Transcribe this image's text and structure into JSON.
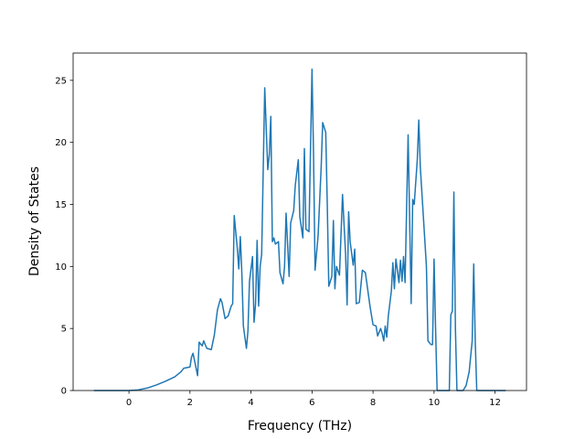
{
  "chart_data": {
    "type": "line",
    "xlabel": "Frequency (THz)",
    "ylabel": "Density of States",
    "x": [
      -1.15,
      0,
      0.3,
      0.6,
      0.9,
      1.2,
      1.5,
      1.7,
      1.8,
      2.0,
      2.05,
      2.1,
      2.2,
      2.25,
      2.3,
      2.4,
      2.45,
      2.55,
      2.7,
      2.8,
      2.9,
      3.0,
      3.05,
      3.15,
      3.25,
      3.35,
      3.4,
      3.45,
      3.55,
      3.6,
      3.65,
      3.7,
      3.75,
      3.85,
      3.9,
      3.95,
      4.05,
      4.1,
      4.15,
      4.2,
      4.25,
      4.3,
      4.35,
      4.45,
      4.55,
      4.6,
      4.65,
      4.7,
      4.75,
      4.8,
      4.9,
      4.95,
      5.05,
      5.1,
      5.15,
      5.25,
      5.3,
      5.4,
      5.45,
      5.55,
      5.6,
      5.7,
      5.75,
      5.8,
      5.9,
      6.0,
      6.05,
      6.1,
      6.2,
      6.3,
      6.35,
      6.45,
      6.5,
      6.55,
      6.65,
      6.7,
      6.75,
      6.8,
      6.9,
      7.0,
      7.1,
      7.15,
      7.2,
      7.25,
      7.35,
      7.4,
      7.45,
      7.55,
      7.65,
      7.75,
      7.9,
      8.0,
      8.1,
      8.15,
      8.25,
      8.3,
      8.35,
      8.4,
      8.45,
      8.5,
      8.6,
      8.65,
      8.7,
      8.75,
      8.85,
      8.9,
      8.95,
      9.0,
      9.05,
      9.15,
      9.25,
      9.3,
      9.35,
      9.45,
      9.5,
      9.55,
      9.65,
      9.7,
      9.75,
      9.8,
      9.9,
      9.95,
      10.0,
      10.05,
      10.1,
      10.5,
      10.55,
      10.6,
      10.65,
      10.7,
      10.75,
      10.95,
      11.05,
      11.15,
      11.25,
      11.3,
      11.35,
      11.4,
      12.35
    ],
    "series": [
      {
        "color": "#1f77b4",
        "values": [
          0,
          0,
          0.05,
          0.2,
          0.45,
          0.75,
          1.1,
          1.5,
          1.8,
          1.9,
          2.7,
          3.0,
          1.8,
          1.2,
          3.9,
          3.6,
          4.0,
          3.4,
          3.3,
          4.5,
          6.5,
          7.4,
          7.1,
          5.8,
          6.0,
          6.8,
          7.0,
          14.1,
          11.5,
          9.8,
          12.4,
          9.5,
          5.2,
          3.4,
          4.8,
          8.8,
          10.8,
          5.5,
          7.0,
          12.1,
          6.8,
          10.0,
          11.0,
          24.4,
          17.8,
          19.0,
          22.1,
          12.0,
          12.3,
          11.8,
          12.0,
          9.5,
          8.6,
          10.0,
          14.3,
          9.2,
          13.5,
          14.5,
          16.5,
          18.6,
          14.0,
          12.3,
          19.5,
          13.0,
          12.8,
          25.9,
          19.0,
          9.7,
          12.5,
          18.0,
          21.6,
          20.8,
          15.0,
          8.4,
          9.2,
          13.7,
          8.2,
          10.0,
          9.3,
          15.8,
          11.0,
          6.9,
          14.4,
          12.0,
          10.1,
          11.4,
          7.0,
          7.1,
          9.7,
          9.5,
          6.8,
          5.3,
          5.2,
          4.4,
          5.0,
          4.6,
          4.0,
          5.2,
          4.3,
          6.0,
          8.0,
          10.3,
          8.2,
          10.6,
          8.7,
          10.5,
          8.8,
          10.8,
          8.7,
          20.6,
          7.0,
          15.4,
          15.0,
          18.6,
          21.8,
          18.0,
          14.0,
          12.0,
          10.0,
          4.0,
          3.7,
          3.7,
          10.6,
          5.0,
          0,
          0,
          6.1,
          6.4,
          16.0,
          5.0,
          0,
          0,
          0.4,
          1.5,
          4.0,
          10.2,
          4.0,
          0,
          0
        ]
      }
    ],
    "xlim": [
      -1.83,
      13.03
    ],
    "ylim": [
      0,
      27.2
    ],
    "xticks": [
      0,
      2,
      4,
      6,
      8,
      10,
      12
    ],
    "yticks": [
      0,
      5,
      10,
      15,
      20,
      25
    ]
  }
}
